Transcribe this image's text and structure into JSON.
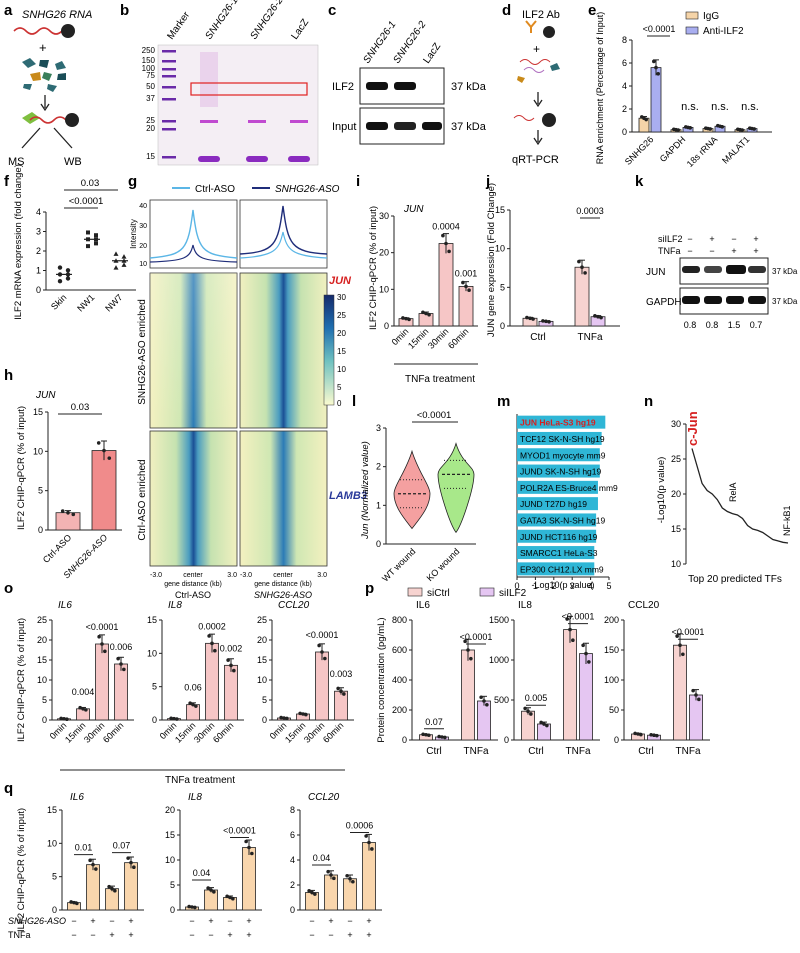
{
  "panels": {
    "a": {
      "letter": "a",
      "title": "SNHG26 RNA",
      "labels": [
        "MS",
        "WB"
      ]
    },
    "b": {
      "letter": "b",
      "lanes": [
        "Marker",
        "SNHG26-1",
        "SNHG26-2",
        "LacZ"
      ],
      "marker_kda": [
        "250",
        "150",
        "100",
        "75",
        "50",
        "37",
        "25",
        "20",
        "15"
      ]
    },
    "c": {
      "letter": "c",
      "lanes": [
        "SNHG26-1",
        "SNHG26-2",
        "LacZ"
      ],
      "rows": [
        "ILF2",
        "Input"
      ],
      "kda": [
        "37 kDa",
        "37 kDa"
      ]
    },
    "d": {
      "letter": "d",
      "title": "ILF2 Ab",
      "output": "qRT-PCR"
    },
    "e": {
      "letter": "e",
      "ylabel": "RNA enrichment (Percentage of Input)",
      "legend": [
        "IgG",
        "Anti-ILF2"
      ],
      "p": [
        "<0.0001",
        "n.s.",
        "n.s.",
        "n.s."
      ]
    },
    "f": {
      "letter": "f",
      "ylabel": "ILF2 mRNA expression (fold change)",
      "p": [
        "<0.0001",
        "0.03"
      ]
    },
    "g": {
      "letter": "g",
      "legend": [
        "Ctrl-ASO",
        "SNHG26-ASO"
      ],
      "profile_ylabel": "Intensity",
      "row_labels": [
        "SNHG26-ASO enriched",
        "Ctrl-ASO enriched"
      ],
      "genes": [
        "JUN",
        "LAMB3"
      ],
      "xticks": [
        "-3.0",
        "center",
        "3.0"
      ],
      "xaxis": "gene distance (kb)",
      "cols": [
        "Ctrl-ASO",
        "SNHG26-ASO"
      ],
      "colorbar": [
        "30",
        "25",
        "20",
        "15",
        "10",
        "5",
        "0"
      ]
    },
    "h": {
      "letter": "h",
      "gene": "JUN",
      "ylabel": "ILF2 CHIP-qPCR (% of input)",
      "p": "0.03"
    },
    "i": {
      "letter": "i",
      "gene": "JUN",
      "ylabel": "ILF2 CHIP-qPCR (% of input)",
      "p": [
        "0.0004",
        "0.001"
      ],
      "xlabel": "TNFa treatment"
    },
    "j": {
      "letter": "j",
      "ylabel": "JUN gene expression (Fold Change)",
      "p": "0.0003"
    },
    "k": {
      "letter": "k",
      "conds": [
        "siILF2",
        "TNFa"
      ],
      "signs": [
        [
          "−",
          "+",
          "−",
          "+"
        ],
        [
          "−",
          "−",
          "+",
          "+"
        ]
      ],
      "rows": [
        "JUN",
        "GAPDH"
      ],
      "kda": [
        "37 kDa",
        "37 kDa"
      ],
      "quant": [
        "0.8",
        "0.8",
        "1.5",
        "0.7"
      ]
    },
    "l": {
      "letter": "l",
      "ylabel": "Jun (Normalized value)",
      "p": "<0.0001"
    },
    "m": {
      "letter": "m",
      "xlabel": "-Log10(p value)"
    },
    "n": {
      "letter": "n",
      "ylabel": "-Log10(p value)",
      "xlabel": "Top 20 predicted TFs",
      "labels": [
        "c-Jun",
        "RelA",
        "NF-kB1"
      ]
    },
    "o": {
      "letter": "o",
      "ylabel": "ILF2 CHIP-qPCR (% of input)",
      "xlabel": "TNFa treatment"
    },
    "p": {
      "letter": "p",
      "legend": [
        "siCtrl",
        "siILF2"
      ],
      "ylabel": "Protein concentration (pg/mL)"
    },
    "q": {
      "letter": "q",
      "ylabel": "ILF2 CHIP-qPCR (% of input)",
      "rowlabels": [
        "SNHG26-ASO",
        "TNFa"
      ],
      "signs": [
        [
          "−",
          "+",
          "−",
          "+"
        ],
        [
          "−",
          "−",
          "+",
          "+"
        ]
      ]
    }
  },
  "chart_data": [
    {
      "id": "e",
      "type": "bar",
      "categories": [
        "SNHG26",
        "GAPDH",
        "18s rRNA",
        "MALAT1"
      ],
      "series": [
        {
          "name": "IgG",
          "values": [
            1.2,
            0.2,
            0.3,
            0.2
          ]
        },
        {
          "name": "Anti-ILF2",
          "values": [
            5.6,
            0.4,
            0.5,
            0.3
          ]
        }
      ],
      "ylim": [
        0,
        8
      ],
      "yticks": [
        0,
        2,
        4,
        6,
        8
      ]
    },
    {
      "id": "f",
      "type": "scatter",
      "categories": [
        "Skin",
        "NW1",
        "NW7"
      ],
      "means": [
        0.8,
        2.6,
        1.5
      ],
      "ylim": [
        0,
        4
      ],
      "yticks": [
        0,
        1,
        2,
        3,
        4
      ]
    },
    {
      "id": "h",
      "type": "bar",
      "categories": [
        "Ctrl-ASO",
        "SNHG26-ASO"
      ],
      "values": [
        2.2,
        10.1
      ],
      "ylim": [
        0,
        15
      ],
      "yticks": [
        0,
        5,
        10,
        15
      ]
    },
    {
      "id": "i",
      "type": "bar",
      "categories": [
        "0min",
        "15min",
        "30min",
        "60min"
      ],
      "values": [
        2.0,
        3.4,
        22.5,
        10.8
      ],
      "ylim": [
        0,
        30
      ],
      "yticks": [
        0,
        10,
        20,
        30
      ]
    },
    {
      "id": "j",
      "type": "bar",
      "categories": [
        "Ctrl",
        "TNFa"
      ],
      "series": [
        {
          "name": "siCtrl",
          "values": [
            1.0,
            7.6
          ]
        },
        {
          "name": "siILF2",
          "values": [
            0.6,
            1.2
          ]
        }
      ],
      "ylim": [
        0,
        15
      ],
      "yticks": [
        0,
        5,
        10,
        15
      ]
    },
    {
      "id": "l",
      "type": "violin",
      "categories": [
        "WT wound",
        "KO wound"
      ],
      "medians": [
        1.3,
        1.8
      ],
      "ylim": [
        0,
        3
      ],
      "yticks": [
        0,
        1,
        2,
        3
      ]
    },
    {
      "id": "m",
      "type": "bar",
      "categories": [
        "JUN HeLa-S3 hg19",
        "TCF12 SK-N-SH hg19",
        "MYOD1 myocyte mm9",
        "JUND SK-N-SH hg19",
        "POLR2A ES-Bruce4 mm9",
        "JUND T27D hg19",
        "GATA3 SK-N-SH hg19",
        "JUND HCT116 hg19",
        "SMARCC1 HeLa-S3",
        "EP300 CH12.LX mm9"
      ],
      "values": [
        4.8,
        4.6,
        4.5,
        4.5,
        4.4,
        4.4,
        4.3,
        4.3,
        4.2,
        4.2
      ],
      "xlim": [
        0,
        5
      ],
      "xticks": [
        0,
        1,
        2,
        3,
        4,
        5
      ]
    },
    {
      "id": "n",
      "type": "line",
      "xlabel": "Top 20 predicted TFs",
      "ylabel": "-Log10(p value)",
      "values": [
        26.5,
        24,
        21.5,
        20.5,
        20,
        19.2,
        18,
        17.5,
        17.2,
        17,
        16.5,
        15.5,
        15,
        14.8,
        14.5,
        14,
        13.5,
        13.3,
        13.1,
        13
      ],
      "ylim": [
        10,
        30
      ],
      "yticks": [
        10,
        15,
        20,
        25,
        30
      ]
    },
    {
      "id": "o",
      "type": "bar",
      "groups": [
        {
          "gene": "IL6",
          "values": [
            0.3,
            2.8,
            19,
            14
          ],
          "ylim": [
            0,
            25
          ],
          "yticks": [
            0,
            5,
            10,
            15,
            20,
            25
          ],
          "p": [
            "0.004",
            "<0.0001",
            "0.006"
          ]
        },
        {
          "gene": "IL8",
          "values": [
            0.2,
            2.3,
            11.5,
            8.2
          ],
          "ylim": [
            0,
            15
          ],
          "yticks": [
            0,
            5,
            10,
            15
          ],
          "p": [
            "0.06",
            "0.0002",
            "0.002"
          ]
        },
        {
          "gene": "CCL20",
          "values": [
            0.5,
            1.5,
            17,
            7.2
          ],
          "ylim": [
            0,
            25
          ],
          "yticks": [
            0,
            5,
            10,
            15,
            20,
            25
          ],
          "p": [
            "<0.0001",
            "0.003"
          ]
        }
      ],
      "categories": [
        "0min",
        "15min",
        "30min",
        "60min"
      ]
    },
    {
      "id": "p",
      "type": "bar",
      "categories": [
        "Ctrl",
        "TNFa"
      ],
      "series_names": [
        "siCtrl",
        "siILF2"
      ],
      "groups": [
        {
          "gene": "IL6",
          "values": [
            [
              35,
              20
            ],
            [
              600,
              260
            ]
          ],
          "ylim": [
            0,
            800
          ],
          "yticks": [
            0,
            200,
            400,
            600,
            800
          ],
          "p": [
            "0.07",
            "<0.0001"
          ]
        },
        {
          "gene": "IL8",
          "values": [
            [
              360,
              200
            ],
            [
              1380,
              1080
            ]
          ],
          "ylim": [
            0,
            1500
          ],
          "yticks": [
            0,
            500,
            1000,
            1500
          ],
          "p": [
            "0.005",
            "<0.0001"
          ]
        },
        {
          "gene": "CCL20",
          "values": [
            [
              10,
              8
            ],
            [
              158,
              75
            ]
          ],
          "ylim": [
            0,
            200
          ],
          "yticks": [
            0,
            50,
            100,
            150,
            200
          ],
          "p": [
            "<0.0001"
          ]
        }
      ]
    },
    {
      "id": "q",
      "type": "bar",
      "groups": [
        {
          "gene": "IL6",
          "values": [
            1.1,
            6.8,
            3.2,
            7.1
          ],
          "ylim": [
            0,
            15
          ],
          "yticks": [
            0,
            5,
            10,
            15
          ],
          "p": [
            "0.01",
            "0.07"
          ]
        },
        {
          "gene": "IL8",
          "values": [
            0.6,
            4.0,
            2.5,
            12.5
          ],
          "ylim": [
            0,
            20
          ],
          "yticks": [
            0,
            5,
            10,
            15,
            20
          ],
          "p": [
            "0.04",
            "<0.0001"
          ]
        },
        {
          "gene": "CCL20",
          "values": [
            1.4,
            2.8,
            2.5,
            5.4
          ],
          "ylim": [
            0,
            8
          ],
          "yticks": [
            0,
            2,
            4,
            6,
            8
          ],
          "p": [
            "0.04",
            "0.0006"
          ]
        }
      ]
    }
  ]
}
